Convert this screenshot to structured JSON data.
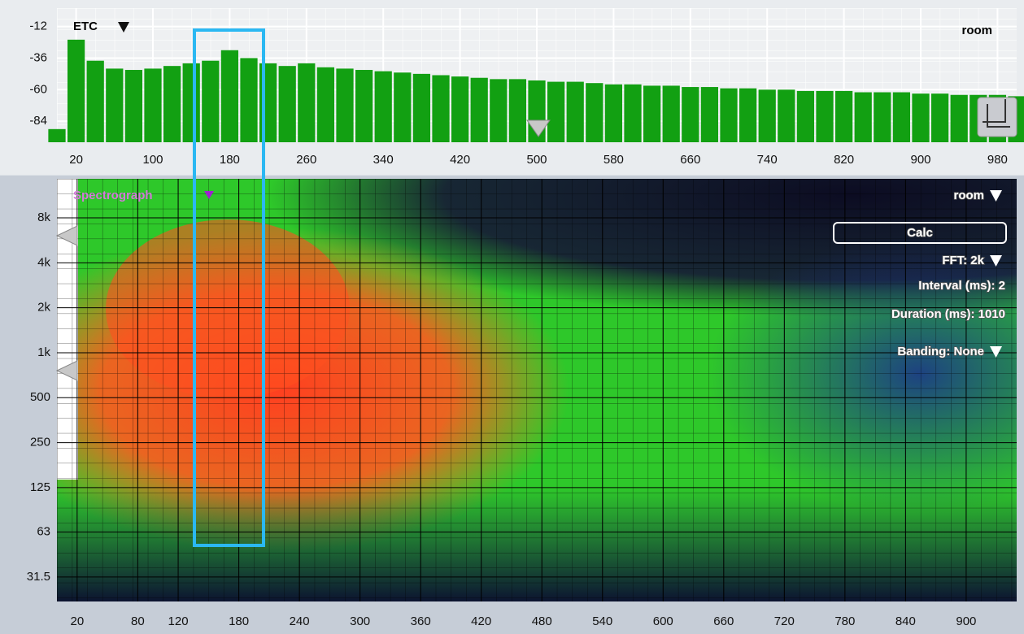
{
  "chart_data": [
    {
      "type": "bar",
      "title": "ETC",
      "source": "room",
      "color": "#12a012",
      "x": [
        0,
        20,
        40,
        60,
        80,
        100,
        120,
        140,
        160,
        180,
        200,
        220,
        240,
        260,
        280,
        300,
        320,
        340,
        360,
        380,
        400,
        420,
        440,
        460,
        480,
        500,
        520,
        540,
        560,
        580,
        600,
        620,
        640,
        660,
        680,
        700,
        720,
        740,
        760,
        780,
        800,
        820,
        840,
        860,
        880,
        900,
        920,
        940,
        960,
        980,
        1000
      ],
      "values": [
        -90,
        -22,
        -38,
        -44,
        -45,
        -44,
        -42,
        -40,
        -38,
        -30,
        -36,
        -40,
        -42,
        -40,
        -43,
        -44,
        -45,
        -46,
        -47,
        -48,
        -49,
        -50,
        -51,
        -52,
        -52,
        -53,
        -54,
        -54,
        -55,
        -56,
        -56,
        -57,
        -57,
        -58,
        -58,
        -59,
        -59,
        -60,
        -60,
        -61,
        -61,
        -61,
        -62,
        -62,
        -62,
        -63,
        -63,
        -64,
        -64,
        -64,
        -65
      ],
      "xlim": [
        0,
        1000
      ],
      "ylim": [
        -100,
        2
      ],
      "xticks": [
        20,
        100,
        180,
        260,
        340,
        420,
        500,
        580,
        660,
        740,
        820,
        900,
        980
      ],
      "yticks": [
        -12,
        -36,
        -60,
        -84
      ],
      "grid": true
    },
    {
      "type": "spectrogram",
      "title": "Spectrograph",
      "source": "room",
      "log_y": true,
      "xlim": [
        0,
        950
      ],
      "ylim": [
        21.6,
        14600
      ],
      "xticks": [
        20,
        80,
        120,
        180,
        240,
        300,
        360,
        420,
        480,
        540,
        600,
        660,
        720,
        780,
        840,
        900
      ],
      "yticks": [
        31.5,
        63,
        125,
        250,
        500,
        {
          "value": 1000,
          "label": "1k"
        },
        {
          "value": 2000,
          "label": "2k"
        },
        {
          "value": 4000,
          "label": "4k"
        },
        {
          "value": 8000,
          "label": "8k"
        }
      ],
      "grid": true,
      "controls": {
        "button": "Calc",
        "fft": "FFT: 2k",
        "interval": "Interval (ms): 2",
        "duration": "Duration (ms): 1010",
        "banding": "Banding: None"
      }
    }
  ]
}
